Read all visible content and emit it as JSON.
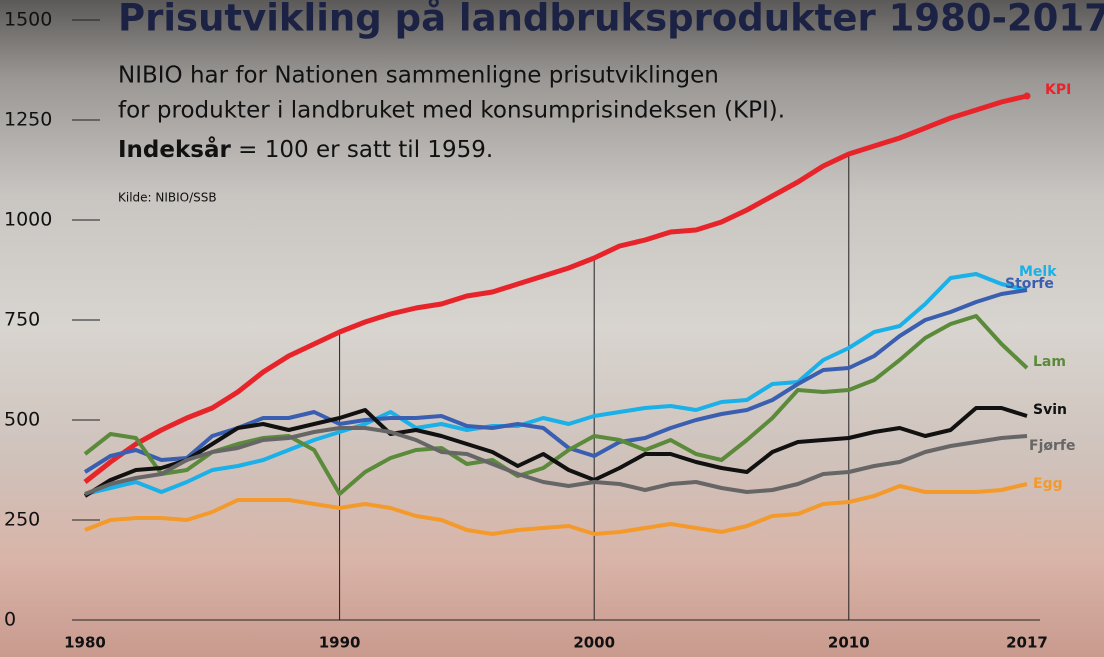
{
  "chart_data": {
    "type": "line",
    "title": "Prisutvikling på landbruksprodukter 1980-2017",
    "subtitle": [
      "NIBIO har for Nationen sammenligne prisutviklingen",
      "for produkter i landbruket med konsumprisindeksen (KPI)."
    ],
    "note_bold": "Indeksår",
    "note_rest": "= 100 er satt til 1959.",
    "source": "Kilde: NIBIO/SSB",
    "x": [
      1980,
      1981,
      1982,
      1983,
      1984,
      1985,
      1986,
      1987,
      1988,
      1989,
      1990,
      1991,
      1992,
      1993,
      1994,
      1995,
      1996,
      1997,
      1998,
      1999,
      2000,
      2001,
      2002,
      2003,
      2004,
      2005,
      2006,
      2007,
      2008,
      2009,
      2010,
      2011,
      2012,
      2013,
      2014,
      2015,
      2016,
      2017
    ],
    "xlim": [
      1980,
      2017
    ],
    "xticks": [
      1980,
      1990,
      2000,
      2010,
      2017
    ],
    "ylim": [
      0,
      1500
    ],
    "yticks": [
      0,
      250,
      500,
      750,
      1000,
      1250,
      1500
    ],
    "series": [
      {
        "name": "KPI",
        "color": "#e8242b",
        "values": [
          345,
          395,
          440,
          475,
          505,
          530,
          570,
          620,
          660,
          690,
          720,
          745,
          765,
          780,
          790,
          810,
          820,
          840,
          860,
          880,
          905,
          935,
          950,
          970,
          975,
          995,
          1025,
          1060,
          1095,
          1135,
          1165,
          1185,
          1205,
          1230,
          1255,
          1275,
          1295,
          1310
        ]
      },
      {
        "name": "Melk",
        "color": "#1ab0e8",
        "values": [
          315,
          330,
          345,
          320,
          345,
          375,
          385,
          400,
          425,
          450,
          470,
          490,
          520,
          480,
          490,
          475,
          485,
          485,
          505,
          490,
          510,
          520,
          530,
          535,
          525,
          545,
          550,
          590,
          595,
          650,
          680,
          720,
          735,
          790,
          855,
          865,
          840,
          825
        ]
      },
      {
        "name": "Storfe",
        "color": "#3a5fb0",
        "values": [
          370,
          410,
          425,
          400,
          405,
          460,
          480,
          505,
          505,
          520,
          490,
          500,
          505,
          505,
          510,
          485,
          480,
          490,
          480,
          430,
          410,
          445,
          455,
          480,
          500,
          515,
          525,
          550,
          590,
          625,
          630,
          660,
          710,
          750,
          770,
          795,
          815,
          825
        ]
      },
      {
        "name": "Lam",
        "color": "#5a8a3a",
        "values": [
          415,
          465,
          455,
          365,
          375,
          420,
          440,
          455,
          460,
          425,
          315,
          370,
          405,
          425,
          430,
          390,
          400,
          360,
          380,
          425,
          460,
          450,
          425,
          450,
          415,
          400,
          450,
          505,
          575,
          570,
          575,
          600,
          650,
          705,
          740,
          760,
          690,
          630
        ]
      },
      {
        "name": "Svin",
        "color": "#111111",
        "values": [
          310,
          350,
          375,
          380,
          400,
          440,
          480,
          490,
          475,
          490,
          505,
          525,
          465,
          475,
          460,
          440,
          420,
          385,
          415,
          375,
          350,
          380,
          415,
          415,
          395,
          380,
          370,
          420,
          445,
          450,
          455,
          470,
          480,
          460,
          475,
          530,
          530,
          510
        ]
      },
      {
        "name": "Fjørfe",
        "color": "#666666",
        "values": [
          315,
          340,
          355,
          365,
          400,
          420,
          430,
          450,
          455,
          470,
          480,
          480,
          470,
          450,
          420,
          415,
          390,
          365,
          345,
          335,
          345,
          340,
          325,
          340,
          345,
          330,
          320,
          325,
          340,
          365,
          370,
          385,
          395,
          420,
          435,
          445,
          455,
          460
        ]
      },
      {
        "name": "Egg",
        "color": "#f39a2a",
        "values": [
          225,
          250,
          255,
          255,
          250,
          270,
          300,
          300,
          300,
          290,
          280,
          290,
          280,
          260,
          250,
          225,
          215,
          225,
          230,
          235,
          215,
          220,
          230,
          240,
          230,
          220,
          235,
          260,
          265,
          290,
          295,
          310,
          335,
          320,
          320,
          320,
          325,
          340
        ]
      }
    ]
  }
}
